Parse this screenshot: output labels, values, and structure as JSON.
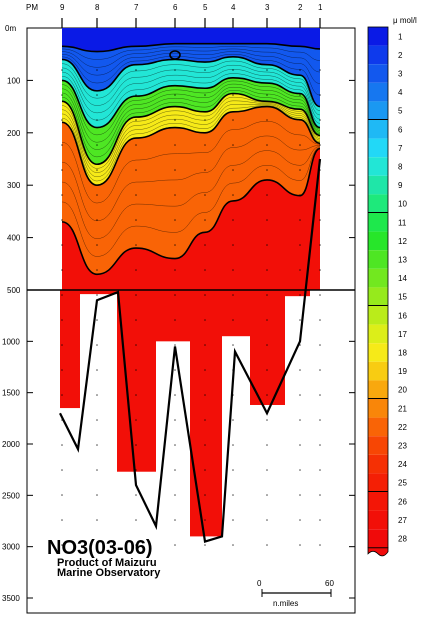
{
  "chart_data": {
    "type": "heatmap",
    "title": "NO3(03-06)",
    "credit": [
      "Product of Maizuru",
      "Marine Observatory"
    ],
    "station_header": "PM",
    "stations": [
      "9",
      "8",
      "7",
      "6",
      "5",
      "4",
      "3",
      "2",
      "1"
    ],
    "depth_ticks_upper": [
      "0m",
      "100",
      "200",
      "300",
      "400",
      "500"
    ],
    "depth_ticks_lower": [
      "1000",
      "1500",
      "2000",
      "2500",
      "3000",
      "3500"
    ],
    "unit_label": "μ mol/l",
    "colorbar_levels": [
      "1",
      "2",
      "3",
      "4",
      "5",
      "6",
      "7",
      "8",
      "9",
      "10",
      "11",
      "12",
      "13",
      "14",
      "15",
      "16",
      "17",
      "18",
      "19",
      "20",
      "21",
      "22",
      "23",
      "24",
      "25",
      "26",
      "27",
      "28"
    ],
    "colorbar_colors": [
      "#0a1ae6",
      "#0e3aec",
      "#1258ee",
      "#1677f0",
      "#1a98f2",
      "#1fb9f5",
      "#22d8f7",
      "#22e6d6",
      "#1fe6a8",
      "#1ee97b",
      "#1ee84c",
      "#27e62a",
      "#4ee623",
      "#72e81f",
      "#96ea1c",
      "#baec1a",
      "#dcee19",
      "#f6ea18",
      "#f8cc12",
      "#f9a80e",
      "#f98609",
      "#f96406",
      "#f74604",
      "#f53004",
      "#f41f05",
      "#f31606",
      "#f20f08",
      "#f00a0a"
    ],
    "colorbar_bold_levels": [
      "5",
      "10",
      "15",
      "20",
      "25"
    ],
    "scale_bar": {
      "start": "0",
      "end": "60",
      "unit": "n.miles"
    },
    "ylim_upper": [
      0,
      500
    ],
    "ylim_lower": [
      500,
      3500
    ],
    "layer_boundaries": {
      "note": "depth (m) of each NO3 contour at stations 9,8,7,6,5,4,3,2,1",
      "levels": [
        1,
        5,
        10,
        15,
        20,
        25
      ],
      "depths": [
        [
          35,
          45,
          35,
          30,
          30,
          30,
          30,
          35,
          40
        ],
        [
          60,
          120,
          70,
          60,
          65,
          55,
          70,
          90,
          150
        ],
        [
          100,
          190,
          130,
          110,
          115,
          95,
          105,
          125,
          190
        ],
        [
          140,
          260,
          170,
          150,
          160,
          125,
          140,
          155,
          205
        ],
        [
          180,
          300,
          210,
          190,
          200,
          160,
          150,
          175,
          220
        ],
        [
          370,
          470,
          420,
          440,
          390,
          330,
          290,
          320,
          230
        ]
      ]
    },
    "bottom_depth": [
      1700,
      2050,
      520,
      2800,
      2950,
      2900,
      1100,
      1700,
      1000,
      600,
      500
    ]
  }
}
